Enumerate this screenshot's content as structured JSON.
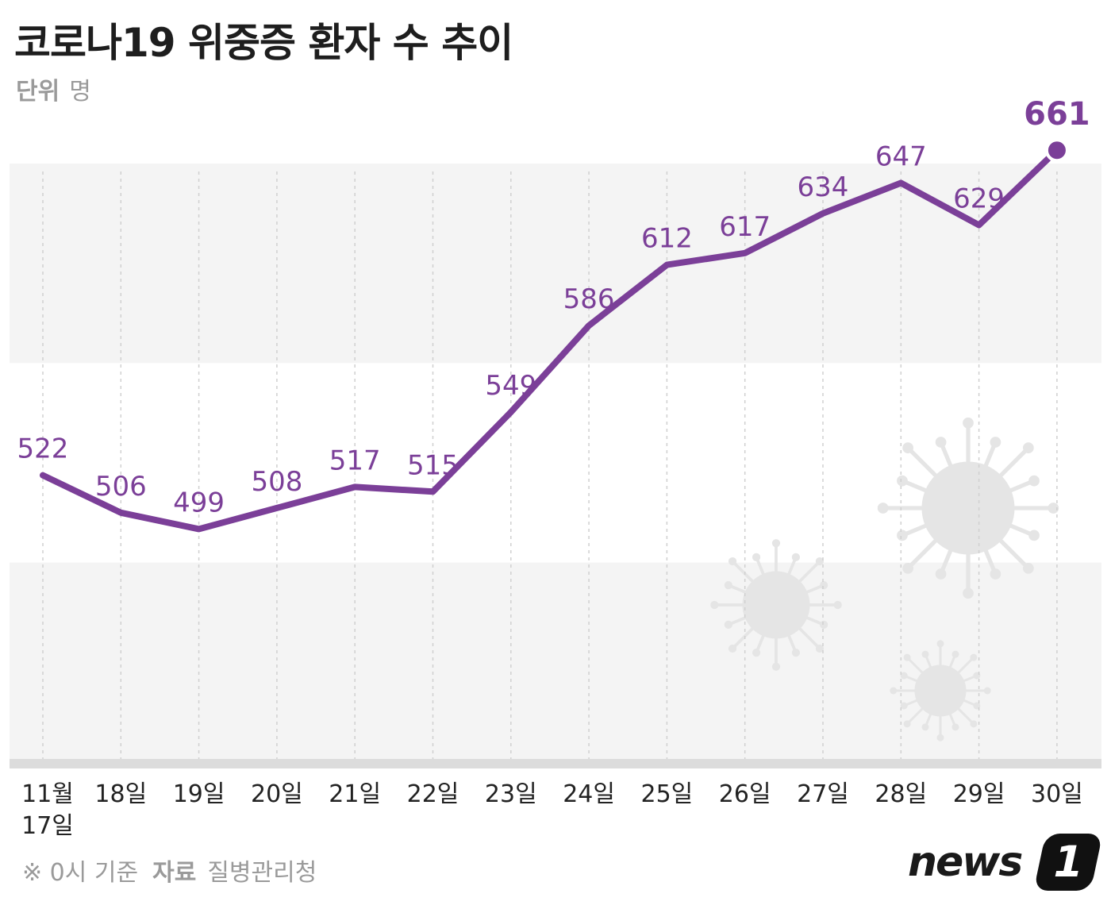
{
  "header": {
    "title": "코로나19 위중증 환자 수 추이",
    "unit_label": "단위",
    "unit_value": "명"
  },
  "footer": {
    "note": "※ 0시 기준",
    "source_label": "자료",
    "source_value": "질병관리청"
  },
  "logo": {
    "word": "news",
    "badge": "1"
  },
  "colors": {
    "line": "#7b3f98",
    "band": "#f4f4f4",
    "baseline": "#dcdcdc",
    "gridline": "#d0d0d0",
    "virus": "#e5e5e5"
  },
  "decorations": [
    "virus-icon",
    "virus-icon",
    "virus-icon"
  ],
  "chart_data": {
    "type": "line",
    "title": "코로나19 위중증 환자 수 추이",
    "ylabel": "",
    "ylim": [
      400,
      675
    ],
    "grid": "vertical dashed",
    "categories": [
      [
        "11월",
        "17일"
      ],
      [
        "18일"
      ],
      [
        "19일"
      ],
      [
        "20일"
      ],
      [
        "21일"
      ],
      [
        "22일"
      ],
      [
        "23일"
      ],
      [
        "24일"
      ],
      [
        "25일"
      ],
      [
        "26일"
      ],
      [
        "27일"
      ],
      [
        "28일"
      ],
      [
        "29일"
      ],
      [
        "30일"
      ]
    ],
    "values": [
      522,
      506,
      499,
      508,
      517,
      515,
      549,
      586,
      612,
      617,
      634,
      647,
      629,
      661
    ],
    "highlight_last": true
  }
}
